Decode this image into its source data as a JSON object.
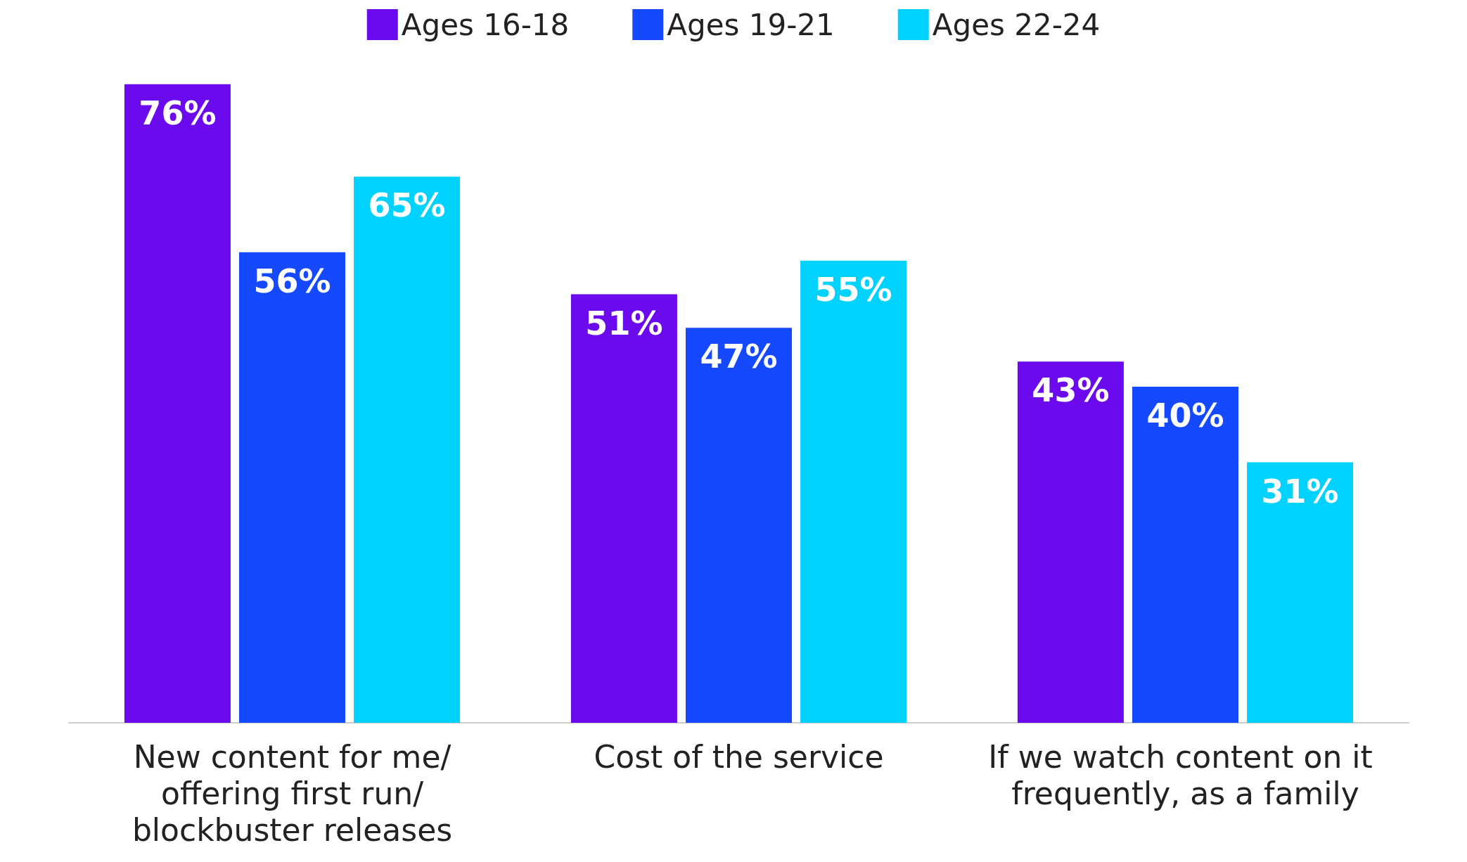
{
  "chart_data": {
    "type": "bar",
    "categories": [
      "New content for me/offering first run/blockbuster releases",
      "Cost of the service",
      "If we watch content on it frequently, as a family"
    ],
    "series": [
      {
        "name": "Ages 16-18",
        "color": "#6a0aed",
        "values": [
          76,
          51,
          43
        ],
        "value_labels": [
          "76%",
          "51%",
          "43%"
        ]
      },
      {
        "name": "Ages 19-21",
        "color": "#1449ff",
        "values": [
          56,
          47,
          40
        ],
        "value_labels": [
          "56%",
          "47%",
          "40%"
        ]
      },
      {
        "name": "Ages 22-24",
        "color": "#00d2ff",
        "values": [
          65,
          55,
          31
        ],
        "value_labels": [
          "65%",
          "55%",
          "31%"
        ]
      }
    ],
    "legend": "top",
    "grid": false
  }
}
